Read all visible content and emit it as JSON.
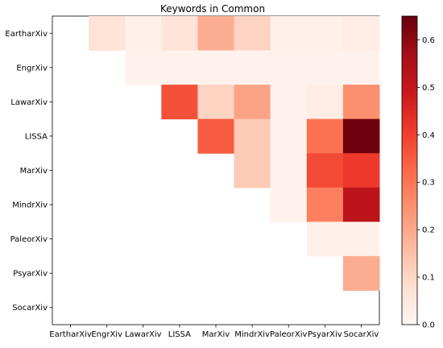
{
  "chart_data": {
    "type": "heatmap",
    "title": "Keywords in Common",
    "xlabel": "",
    "ylabel": "",
    "x_categories": [
      "EartharXiv",
      "EngrXiv",
      "LawarXiv",
      "LISSA",
      "MarXiv",
      "MindrXiv",
      "PaleorXiv",
      "PsyarXiv",
      "SocarXiv"
    ],
    "y_categories": [
      "EartharXiv",
      "EngrXiv",
      "LawarXiv",
      "LISSA",
      "MarXiv",
      "MindrXiv",
      "PaleorXiv",
      "PsyarXiv",
      "SocarXiv"
    ],
    "values": [
      [
        null,
        0.07,
        0.02,
        0.07,
        0.19,
        0.11,
        0.02,
        0.02,
        0.03
      ],
      [
        null,
        null,
        0.01,
        0.01,
        0.01,
        0.01,
        0.01,
        0.01,
        0.01
      ],
      [
        null,
        null,
        null,
        0.37,
        0.11,
        0.21,
        0.01,
        0.03,
        0.25
      ],
      [
        null,
        null,
        null,
        null,
        0.35,
        0.13,
        0.01,
        0.31,
        0.64
      ],
      [
        null,
        null,
        null,
        null,
        null,
        0.13,
        0.01,
        0.38,
        0.41
      ],
      [
        null,
        null,
        null,
        null,
        null,
        null,
        0.01,
        0.28,
        0.52
      ],
      [
        null,
        null,
        null,
        null,
        null,
        null,
        null,
        0.02,
        0.02
      ],
      [
        null,
        null,
        null,
        null,
        null,
        null,
        null,
        null,
        0.19
      ],
      [
        null,
        null,
        null,
        null,
        null,
        null,
        null,
        null,
        null
      ]
    ],
    "colormap": "Reds",
    "vmin": 0.0,
    "vmax": 0.65,
    "colorbar_ticks": [
      "0.0",
      "0.1",
      "0.2",
      "0.3",
      "0.4",
      "0.5",
      "0.6"
    ],
    "colorbar_tick_values": [
      0.0,
      0.1,
      0.2,
      0.3,
      0.4,
      0.5,
      0.6
    ]
  }
}
